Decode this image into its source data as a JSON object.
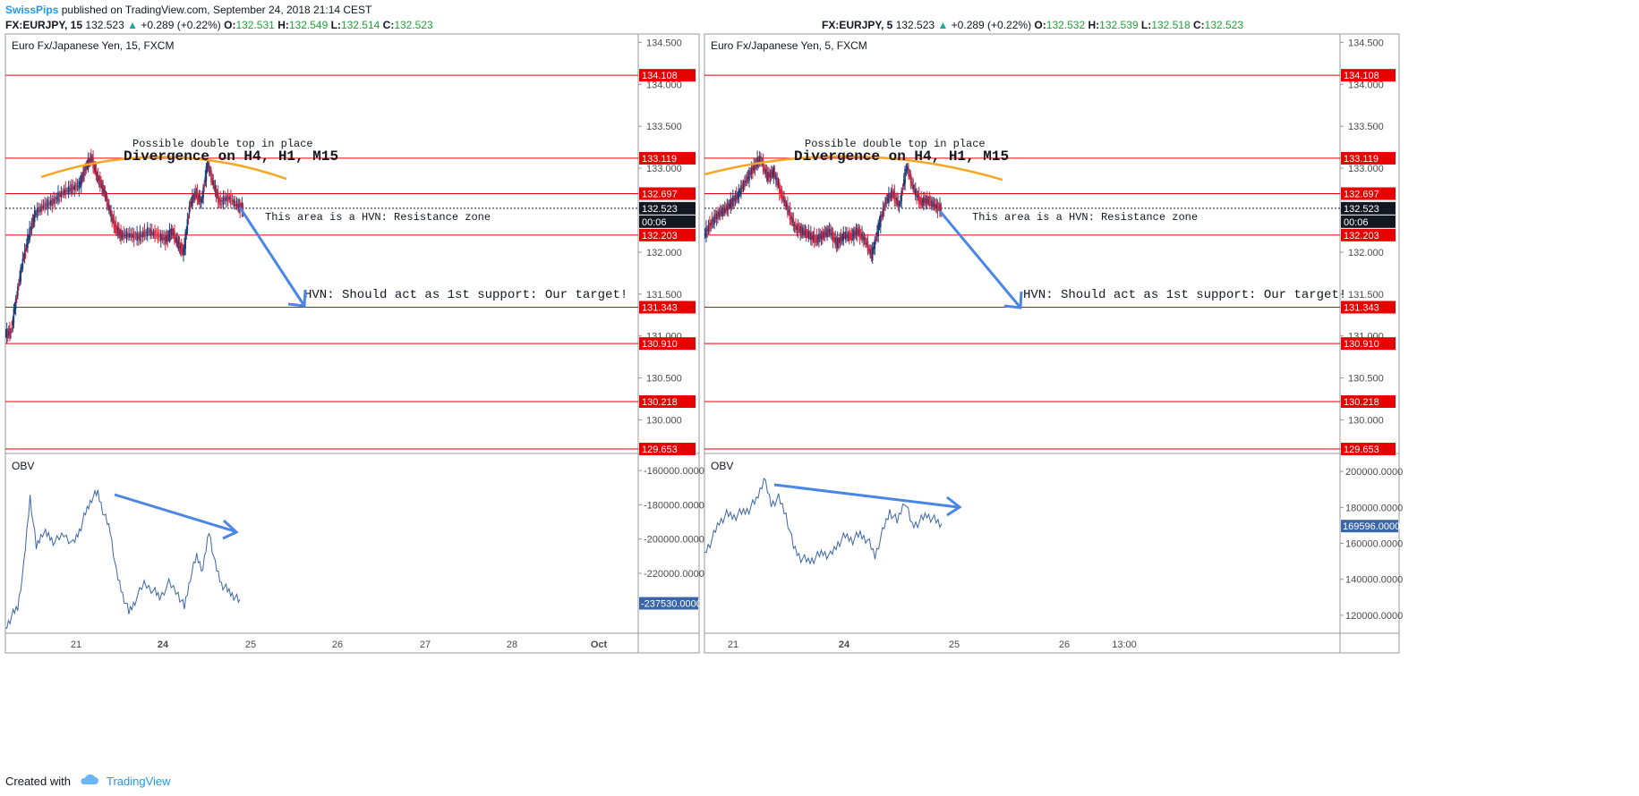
{
  "header": {
    "author": "SwissPips",
    "published": "published on TradingView.com, September 24, 2018 21:14 CEST"
  },
  "panes_header": [
    {
      "symbol": "FX:EURJPY, 15",
      "price": "132.523",
      "change": "+0.289 (+0.22%)",
      "o_lbl": "O:",
      "o": "132.531",
      "h_lbl": "H:",
      "h": "132.549",
      "l_lbl": "L:",
      "l": "132.514",
      "c_lbl": "C:",
      "c": "132.523"
    },
    {
      "symbol": "FX:EURJPY, 5",
      "price": "132.523",
      "change": "+0.289 (+0.22%)",
      "o_lbl": "O:",
      "o": "132.532",
      "h_lbl": "H:",
      "h": "132.539",
      "l_lbl": "L:",
      "l": "132.518",
      "c_lbl": "C:",
      "c": "132.523"
    }
  ],
  "footer": {
    "created_with": "Created with",
    "brand": "TradingView"
  },
  "colors": {
    "up": "#26a69a",
    "bull_candle": "#1e3c78",
    "bear_candle": "#e0263d",
    "level_line": "#e60000",
    "arc": "#f5a623",
    "arrow": "#4a86e8",
    "obv_line": "#3a66a8",
    "price_label_bg": "#131722",
    "obv_label_bg": "#3a66a8"
  },
  "chart_data": [
    {
      "type": "candlestick",
      "title": "Euro Fx/Japanese Yen, 15, FXCM",
      "price_axis_ticks": [
        "134.500",
        "134.000",
        "133.500",
        "133.000",
        "132.500",
        "132.000",
        "131.500",
        "131.000",
        "130.500",
        "130.000"
      ],
      "ylim": [
        129.6,
        134.6
      ],
      "horizontal_levels": [
        "134.108",
        "133.119",
        "132.697",
        "132.203",
        "131.343",
        "130.910",
        "130.218",
        "129.653"
      ],
      "current_price": "132.523",
      "countdown": "00:06",
      "x_ticks": [
        "21",
        "24",
        "25",
        "26",
        "27",
        "28",
        "Oct"
      ],
      "annotations": {
        "double_top": "Possible double top in place",
        "divergence": "Divergence on H4, H1, M15",
        "resistance": "This area is a HVN: Resistance zone",
        "support": "HVN: Should act as 1st support: Our target!"
      },
      "price_path": [
        [
          0,
          131.02
        ],
        [
          0.02,
          131.05
        ],
        [
          0.04,
          131.5
        ],
        [
          0.06,
          131.9
        ],
        [
          0.08,
          132.2
        ],
        [
          0.1,
          132.45
        ],
        [
          0.13,
          132.55
        ],
        [
          0.16,
          132.6
        ],
        [
          0.19,
          132.7
        ],
        [
          0.22,
          132.75
        ],
        [
          0.25,
          132.8
        ],
        [
          0.27,
          133.0
        ],
        [
          0.29,
          133.12
        ],
        [
          0.31,
          132.9
        ],
        [
          0.33,
          132.75
        ],
        [
          0.35,
          132.5
        ],
        [
          0.37,
          132.3
        ],
        [
          0.39,
          132.2
        ],
        [
          0.42,
          132.2
        ],
        [
          0.45,
          132.18
        ],
        [
          0.48,
          132.25
        ],
        [
          0.51,
          132.2
        ],
        [
          0.54,
          132.15
        ],
        [
          0.56,
          132.25
        ],
        [
          0.58,
          132.1
        ],
        [
          0.6,
          132.0
        ],
        [
          0.62,
          132.55
        ],
        [
          0.64,
          132.7
        ],
        [
          0.66,
          132.6
        ],
        [
          0.68,
          133.05
        ],
        [
          0.7,
          132.8
        ],
        [
          0.72,
          132.6
        ],
        [
          0.75,
          132.65
        ],
        [
          0.78,
          132.55
        ],
        [
          0.8,
          132.52
        ]
      ],
      "obv": {
        "label": "OBV",
        "axis_ticks": [
          "-160000.0000",
          "-180000.0000",
          "-200000.0000",
          "-220000.0000"
        ],
        "ylim": [
          -255000,
          -150000
        ],
        "current": "-237530.0000",
        "path": [
          [
            0,
            -252000
          ],
          [
            0.02,
            -245000
          ],
          [
            0.04,
            -240000
          ],
          [
            0.06,
            -215000
          ],
          [
            0.08,
            -175000
          ],
          [
            0.1,
            -205000
          ],
          [
            0.12,
            -196000
          ],
          [
            0.14,
            -198000
          ],
          [
            0.16,
            -202000
          ],
          [
            0.19,
            -197000
          ],
          [
            0.22,
            -203000
          ],
          [
            0.24,
            -195000
          ],
          [
            0.26,
            -185000
          ],
          [
            0.28,
            -176000
          ],
          [
            0.3,
            -173000
          ],
          [
            0.32,
            -186000
          ],
          [
            0.34,
            -195000
          ],
          [
            0.36,
            -220000
          ],
          [
            0.38,
            -232000
          ],
          [
            0.4,
            -243000
          ],
          [
            0.42,
            -236000
          ],
          [
            0.45,
            -226000
          ],
          [
            0.48,
            -230000
          ],
          [
            0.5,
            -234000
          ],
          [
            0.53,
            -226000
          ],
          [
            0.56,
            -232000
          ],
          [
            0.58,
            -240000
          ],
          [
            0.6,
            -222000
          ],
          [
            0.62,
            -210000
          ],
          [
            0.64,
            -218000
          ],
          [
            0.66,
            -195000
          ],
          [
            0.68,
            -215000
          ],
          [
            0.7,
            -226000
          ],
          [
            0.72,
            -230000
          ],
          [
            0.74,
            -233000
          ],
          [
            0.76,
            -237000
          ]
        ]
      }
    },
    {
      "type": "candlestick",
      "title": "Euro Fx/Japanese Yen, 5, FXCM",
      "price_axis_ticks": [
        "134.500",
        "134.000",
        "133.500",
        "133.000",
        "132.500",
        "132.000",
        "131.500",
        "131.000",
        "130.500",
        "130.000"
      ],
      "ylim": [
        129.6,
        134.6
      ],
      "horizontal_levels": [
        "134.108",
        "133.119",
        "132.697",
        "132.203",
        "131.343",
        "130.910",
        "130.218",
        "129.653"
      ],
      "current_price": "132.523",
      "countdown": "00:06",
      "x_ticks": [
        "21",
        "24",
        "25",
        "26",
        "13:00"
      ],
      "annotations": {
        "double_top": "Possible double top in place",
        "divergence": "Divergence on H4, H1, M15",
        "resistance": "This area is a HVN: Resistance zone",
        "support": "HVN: Should act as 1st support: Our target!"
      },
      "price_path": [
        [
          0,
          132.2
        ],
        [
          0.02,
          132.35
        ],
        [
          0.04,
          132.45
        ],
        [
          0.06,
          132.5
        ],
        [
          0.08,
          132.6
        ],
        [
          0.1,
          132.7
        ],
        [
          0.12,
          132.85
        ],
        [
          0.14,
          133.0
        ],
        [
          0.16,
          133.12
        ],
        [
          0.18,
          132.9
        ],
        [
          0.2,
          132.95
        ],
        [
          0.22,
          132.7
        ],
        [
          0.24,
          132.5
        ],
        [
          0.26,
          132.3
        ],
        [
          0.28,
          132.25
        ],
        [
          0.3,
          132.2
        ],
        [
          0.32,
          132.15
        ],
        [
          0.34,
          132.2
        ],
        [
          0.36,
          132.25
        ],
        [
          0.38,
          132.1
        ],
        [
          0.4,
          132.2
        ],
        [
          0.42,
          132.18
        ],
        [
          0.44,
          132.25
        ],
        [
          0.46,
          132.15
        ],
        [
          0.48,
          131.95
        ],
        [
          0.5,
          132.3
        ],
        [
          0.52,
          132.6
        ],
        [
          0.54,
          132.7
        ],
        [
          0.56,
          132.55
        ],
        [
          0.58,
          133.02
        ],
        [
          0.6,
          132.75
        ],
        [
          0.62,
          132.6
        ],
        [
          0.64,
          132.62
        ],
        [
          0.66,
          132.55
        ],
        [
          0.68,
          132.52
        ]
      ],
      "obv": {
        "label": "OBV",
        "axis_ticks": [
          "200000.0000",
          "180000.0000",
          "160000.0000",
          "140000.0000",
          "120000.0000"
        ],
        "ylim": [
          110000,
          210000
        ],
        "current": "169596.0000",
        "path": [
          [
            0,
            155000
          ],
          [
            0.02,
            162000
          ],
          [
            0.04,
            172000
          ],
          [
            0.06,
            176000
          ],
          [
            0.08,
            175000
          ],
          [
            0.1,
            177000
          ],
          [
            0.12,
            179000
          ],
          [
            0.14,
            184000
          ],
          [
            0.16,
            196000
          ],
          [
            0.18,
            182000
          ],
          [
            0.2,
            185000
          ],
          [
            0.22,
            176000
          ],
          [
            0.24,
            158000
          ],
          [
            0.26,
            152000
          ],
          [
            0.28,
            150000
          ],
          [
            0.3,
            152000
          ],
          [
            0.32,
            155000
          ],
          [
            0.34,
            153000
          ],
          [
            0.36,
            160000
          ],
          [
            0.38,
            164000
          ],
          [
            0.4,
            162000
          ],
          [
            0.42,
            165000
          ],
          [
            0.44,
            162000
          ],
          [
            0.46,
            153000
          ],
          [
            0.48,
            166000
          ],
          [
            0.5,
            178000
          ],
          [
            0.52,
            172000
          ],
          [
            0.54,
            184000
          ],
          [
            0.56,
            170000
          ],
          [
            0.58,
            172000
          ],
          [
            0.6,
            176000
          ],
          [
            0.62,
            173000
          ],
          [
            0.64,
            170000
          ]
        ]
      }
    }
  ]
}
